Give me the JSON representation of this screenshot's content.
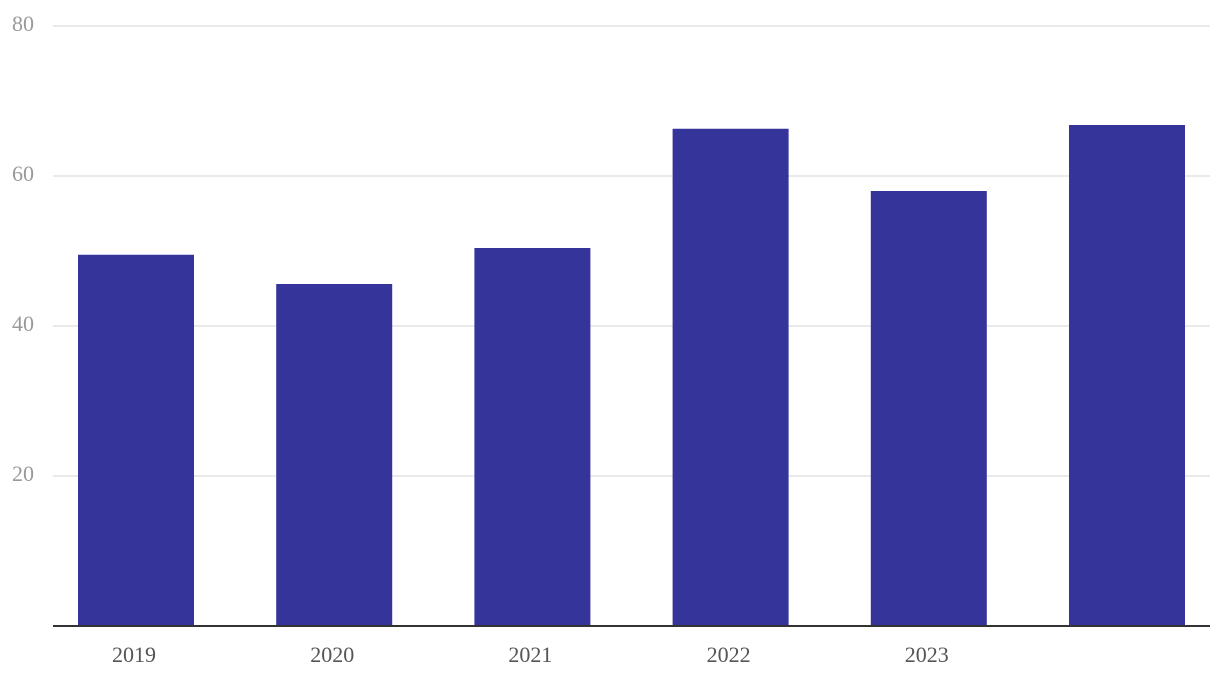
{
  "chart_data": {
    "type": "bar",
    "categories": [
      "2019",
      "2020",
      "2021",
      "2022",
      "2023",
      null
    ],
    "values": [
      49.5,
      45.6,
      50.4,
      66.3,
      58,
      66.8
    ],
    "color": "#35349a",
    "ylim": [
      0,
      80
    ],
    "yticks": [
      20,
      40,
      60,
      80
    ],
    "grid": true
  }
}
